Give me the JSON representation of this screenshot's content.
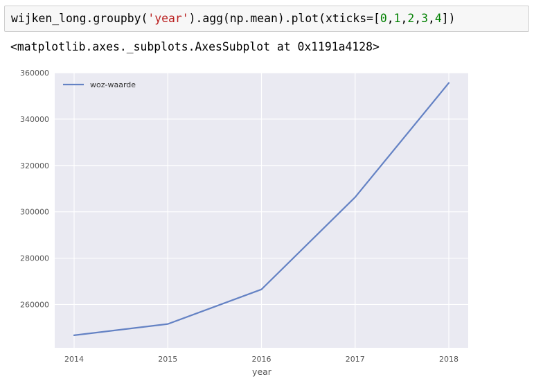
{
  "code_cell": {
    "tokens": [
      {
        "text": "wijken_long.groupby(",
        "kind": "plain"
      },
      {
        "text": "'year'",
        "kind": "string"
      },
      {
        "text": ").agg(np.mean).plot(xticks=[",
        "kind": "plain"
      },
      {
        "text": "0",
        "kind": "number"
      },
      {
        "text": ",",
        "kind": "plain"
      },
      {
        "text": "1",
        "kind": "number"
      },
      {
        "text": ",",
        "kind": "plain"
      },
      {
        "text": "2",
        "kind": "number"
      },
      {
        "text": ",",
        "kind": "plain"
      },
      {
        "text": "3",
        "kind": "number"
      },
      {
        "text": ",",
        "kind": "plain"
      },
      {
        "text": "4",
        "kind": "number"
      },
      {
        "text": "])",
        "kind": "plain"
      }
    ]
  },
  "output": {
    "text": "<matplotlib.axes._subplots.AxesSubplot at 0x1191a4128>"
  },
  "colors": {
    "string": "#ba2121",
    "number": "#008000",
    "plot_background": "#eaeaf2",
    "grid": "#ffffff",
    "line": "#6482c4"
  },
  "chart_data": {
    "type": "line",
    "x": [
      2014,
      2015,
      2016,
      2017,
      2018
    ],
    "series": [
      {
        "name": "woz-waarde",
        "values": [
          246700,
          251600,
          266500,
          306300,
          355600
        ]
      }
    ],
    "xlabel": "year",
    "ylabel": "",
    "title": "",
    "xticks": [
      "2014",
      "2015",
      "2016",
      "2017",
      "2018"
    ],
    "yticks": [
      260000,
      280000,
      300000,
      320000,
      340000,
      360000
    ],
    "ytick_labels": [
      "260000",
      "280000",
      "300000",
      "320000",
      "340000",
      "360000"
    ],
    "ylim": [
      241300,
      360000
    ],
    "grid": true,
    "legend": "top-left"
  }
}
